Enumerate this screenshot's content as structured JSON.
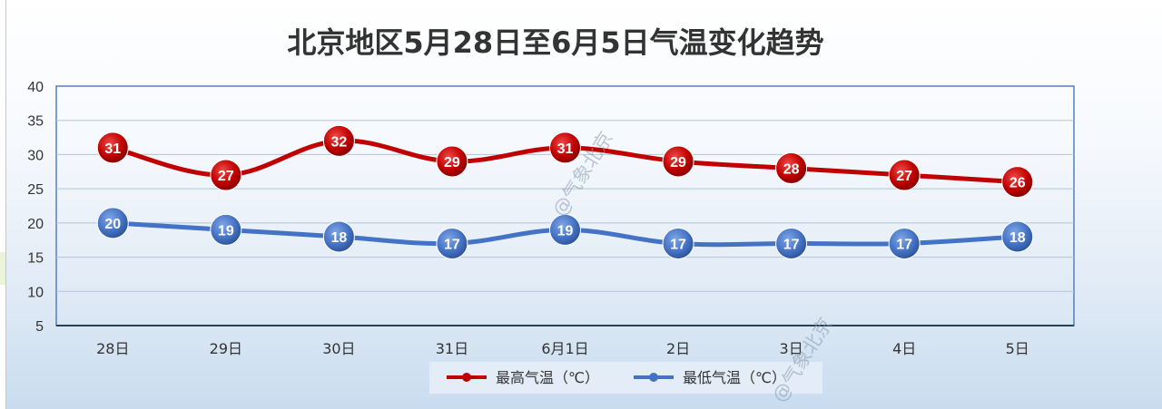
{
  "chart_data": {
    "type": "line",
    "title": "北京地区5月28日至6月5日气温变化趋势",
    "categories": [
      "28日",
      "29日",
      "30日",
      "31日",
      "6月1日",
      "2日",
      "3日",
      "4日",
      "5日"
    ],
    "series": [
      {
        "name": "最高气温（℃）",
        "values": [
          31,
          27,
          32,
          29,
          31,
          29,
          28,
          27,
          26
        ],
        "color": "#c00000"
      },
      {
        "name": "最低气温（℃）",
        "values": [
          20,
          19,
          18,
          17,
          19,
          17,
          17,
          17,
          18
        ],
        "color": "#4472c4"
      }
    ],
    "yticks": [
      40,
      35,
      30,
      25,
      20,
      15,
      10,
      5
    ],
    "ylim": [
      5,
      40
    ],
    "grid": true,
    "smooth": true,
    "data_labels": true,
    "legend_position": "bottom"
  },
  "watermarks": [
    "@气象北京",
    "@气象北京"
  ]
}
